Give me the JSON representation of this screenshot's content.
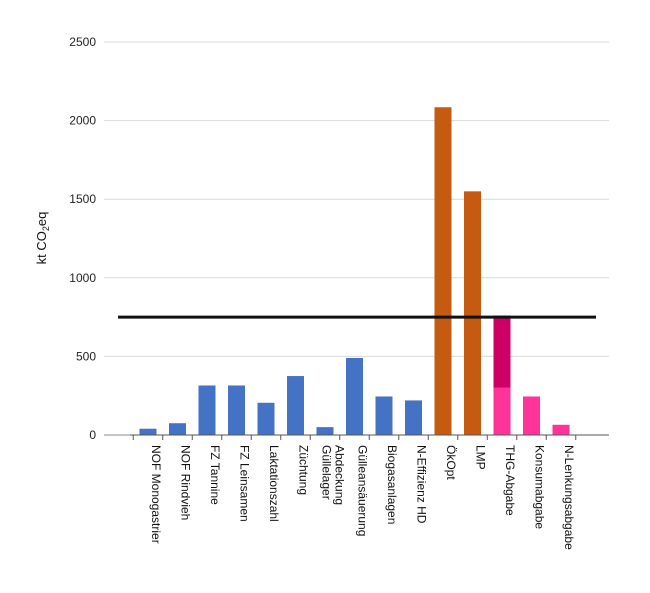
{
  "chart_data": {
    "type": "bar",
    "ylabel": "kt CO₂eq",
    "ylabel_main": "kt CO",
    "ylabel_sub": "2",
    "ylabel_tail": "eq",
    "ylim": [
      0,
      2500
    ],
    "yticks": [
      0,
      500,
      1000,
      1500,
      2000,
      2500
    ],
    "grid": true,
    "reference_line": 750,
    "categories": [
      [
        "NOF Monogastrier"
      ],
      [
        "NOF Rindvieh"
      ],
      [
        "FZ Tannine"
      ],
      [
        "FZ Leinsamen"
      ],
      [
        "Laktationszahl"
      ],
      [
        "Züchtung"
      ],
      [
        "Abdeckung",
        "Güllelager"
      ],
      [
        "Gülleansäuerung"
      ],
      [
        "Biogasanlagen"
      ],
      [
        "N-Effizienz HD"
      ],
      [
        "ÖkOpt"
      ],
      [
        "LMP"
      ],
      [
        "THG-Abgabe"
      ],
      [
        "Konsumabgabe"
      ],
      [
        "N-Lenkungsabgabe"
      ]
    ],
    "bars": [
      {
        "segments": [
          {
            "value": 40,
            "color": "#4472C4"
          }
        ]
      },
      {
        "segments": [
          {
            "value": 75,
            "color": "#4472C4"
          }
        ]
      },
      {
        "segments": [
          {
            "value": 315,
            "color": "#4472C4"
          }
        ]
      },
      {
        "segments": [
          {
            "value": 315,
            "color": "#4472C4"
          }
        ]
      },
      {
        "segments": [
          {
            "value": 205,
            "color": "#4472C4"
          }
        ]
      },
      {
        "segments": [
          {
            "value": 375,
            "color": "#4472C4"
          }
        ]
      },
      {
        "segments": [
          {
            "value": 50,
            "color": "#4472C4"
          }
        ]
      },
      {
        "segments": [
          {
            "value": 490,
            "color": "#4472C4"
          }
        ]
      },
      {
        "segments": [
          {
            "value": 245,
            "color": "#4472C4"
          }
        ]
      },
      {
        "segments": [
          {
            "value": 220,
            "color": "#4472C4"
          }
        ]
      },
      {
        "segments": [
          {
            "value": 2085,
            "color": "#C55A11"
          }
        ]
      },
      {
        "segments": [
          {
            "value": 1550,
            "color": "#C55A11"
          }
        ]
      },
      {
        "segments": [
          {
            "value": 300,
            "color": "#FF3399"
          },
          {
            "value": 460,
            "color": "#CC0066"
          }
        ]
      },
      {
        "segments": [
          {
            "value": 245,
            "color": "#FF3399"
          }
        ]
      },
      {
        "segments": [
          {
            "value": 65,
            "color": "#FF3399"
          }
        ]
      }
    ]
  }
}
